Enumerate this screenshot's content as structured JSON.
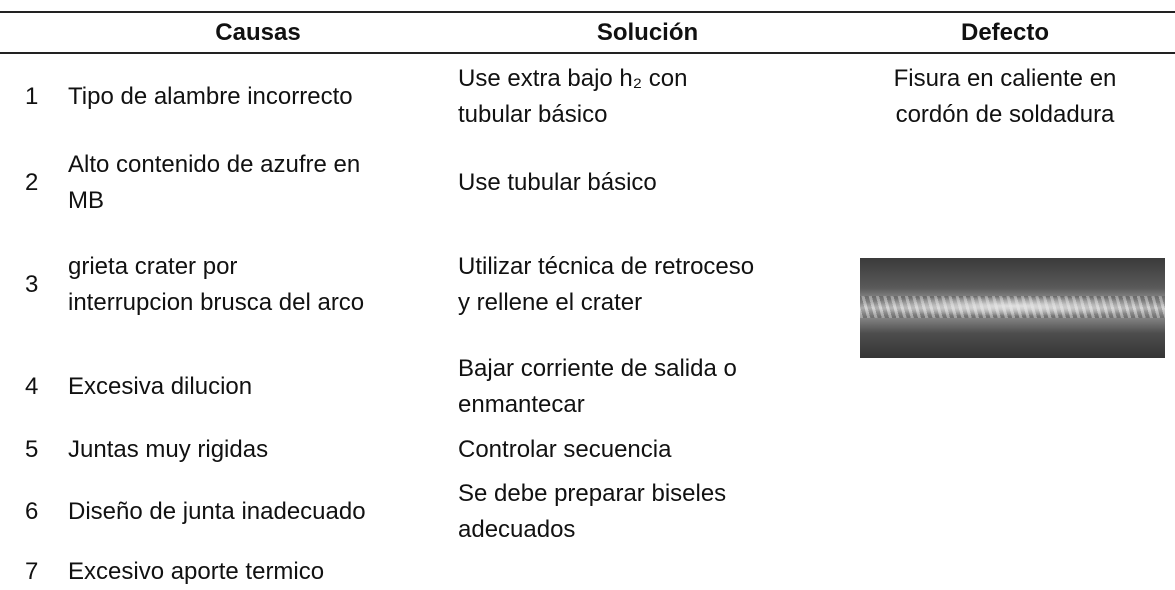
{
  "table": {
    "headers": [
      "Causas",
      "Solución",
      "Defecto"
    ],
    "rows": [
      {
        "number": "1",
        "cause": [
          "Tipo de alambre incorrecto"
        ],
        "solution": [
          "Use extra bajo h₂ con",
          "tubular básico"
        ],
        "defect": [
          "Fisura en caliente en",
          "cordón de soldadura"
        ]
      },
      {
        "number": "2",
        "cause": [
          "Alto contenido de azufre en",
          "MB"
        ],
        "solution": [
          "Use tubular básico"
        ]
      },
      {
        "number": "3",
        "cause": [
          "grieta crater por",
          "interrupcion brusca del arco"
        ],
        "solution": [
          "Utilizar técnica de retroceso",
          "y rellene el crater"
        ]
      },
      {
        "number": "4",
        "cause": [
          "Excesiva dilucion"
        ],
        "solution": [
          "Bajar corriente de salida o",
          "enmantecar"
        ]
      },
      {
        "number": "5",
        "cause": [
          "Juntas muy rigidas"
        ],
        "solution": [
          "Controlar secuencia"
        ]
      },
      {
        "number": "6",
        "cause": [
          "Diseño de junta inadecuado"
        ],
        "solution": [
          "Se debe preparar biseles",
          "adecuados"
        ]
      },
      {
        "number": "7",
        "cause": [
          "Excesivo aporte termico"
        ],
        "solution": []
      }
    ]
  }
}
